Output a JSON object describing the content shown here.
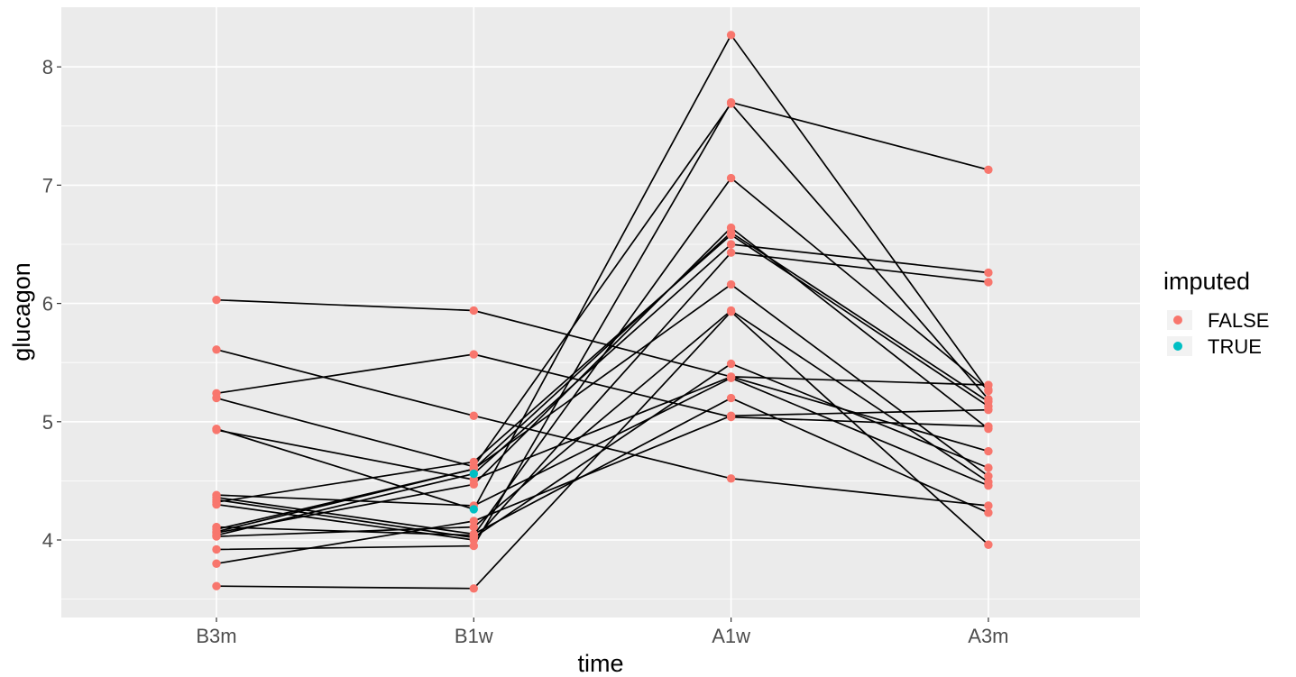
{
  "chart_data": {
    "type": "line",
    "title": "",
    "xlabel": "time",
    "ylabel": "glucagon",
    "categories": [
      "B3m",
      "B1w",
      "A1w",
      "A3m"
    ],
    "yticks": [
      4,
      5,
      6,
      7,
      8
    ],
    "ylim": [
      3.4,
      8.36
    ],
    "grid": true,
    "legend": {
      "title": "imputed",
      "position": "right",
      "entries": [
        {
          "label": "FALSE",
          "color": "#F8766D"
        },
        {
          "label": "TRUE",
          "color": "#00BFC4"
        }
      ]
    },
    "colors": {
      "FALSE": "#F8766D",
      "TRUE": "#00BFC4",
      "line": "#000000",
      "panel": "#EBEBEB",
      "grid": "#FFFFFF"
    },
    "series": [
      {
        "values": [
          6.03,
          5.94,
          5.38,
          5.31
        ],
        "imputed": [
          false,
          false,
          false,
          false
        ]
      },
      {
        "values": [
          5.61,
          5.05,
          4.52,
          4.29
        ],
        "imputed": [
          false,
          false,
          false,
          false
        ]
      },
      {
        "values": [
          5.24,
          5.57,
          5.04,
          4.96
        ],
        "imputed": [
          false,
          false,
          false,
          false
        ]
      },
      {
        "values": [
          5.2,
          4.62,
          7.69,
          5.19
        ],
        "imputed": [
          false,
          false,
          false,
          false
        ]
      },
      {
        "values": [
          4.94,
          4.26,
          8.27,
          5.26
        ],
        "imputed": [
          false,
          true,
          false,
          false
        ]
      },
      {
        "values": [
          4.93,
          4.51,
          5.38,
          4.75
        ],
        "imputed": [
          false,
          false,
          false,
          false
        ]
      },
      {
        "values": [
          4.38,
          4.29,
          5.37,
          4.46
        ],
        "imputed": [
          false,
          false,
          false,
          false
        ]
      },
      {
        "values": [
          4.36,
          4.05,
          5.2,
          4.23
        ],
        "imputed": [
          false,
          false,
          false,
          false
        ]
      },
      {
        "values": [
          4.34,
          4.02,
          5.49,
          4.61
        ],
        "imputed": [
          false,
          false,
          false,
          false
        ]
      },
      {
        "values": [
          4.32,
          4.66,
          6.58,
          5.13
        ],
        "imputed": [
          false,
          false,
          false,
          false
        ]
      },
      {
        "values": [
          4.11,
          4.04,
          7.06,
          5.27
        ],
        "imputed": [
          false,
          false,
          false,
          false
        ]
      },
      {
        "values": [
          4.07,
          4.6,
          6.16,
          4.54
        ],
        "imputed": [
          false,
          false,
          false,
          false
        ]
      },
      {
        "values": [
          4.06,
          4.47,
          6.64,
          4.94
        ],
        "imputed": [
          false,
          false,
          false,
          false
        ]
      },
      {
        "values": [
          4.04,
          4.56,
          6.5,
          6.26
        ],
        "imputed": [
          false,
          true,
          false,
          false
        ]
      },
      {
        "values": [
          4.03,
          4.11,
          5.94,
          4.49
        ],
        "imputed": [
          false,
          false,
          false,
          false
        ]
      },
      {
        "values": [
          3.92,
          3.95,
          7.7,
          7.13
        ],
        "imputed": [
          false,
          false,
          false,
          false
        ]
      },
      {
        "values": [
          3.8,
          4.16,
          5.05,
          5.1
        ],
        "imputed": [
          false,
          false,
          false,
          false
        ]
      },
      {
        "values": [
          3.61,
          3.59,
          5.93,
          3.96
        ],
        "imputed": [
          false,
          false,
          false,
          false
        ]
      },
      {
        "values": [
          4.3,
          4.0,
          6.43,
          6.18
        ],
        "imputed": [
          false,
          false,
          false,
          false
        ]
      },
      {
        "values": [
          4.09,
          4.6,
          6.6,
          5.17
        ],
        "imputed": [
          false,
          false,
          false,
          false
        ]
      }
    ]
  }
}
